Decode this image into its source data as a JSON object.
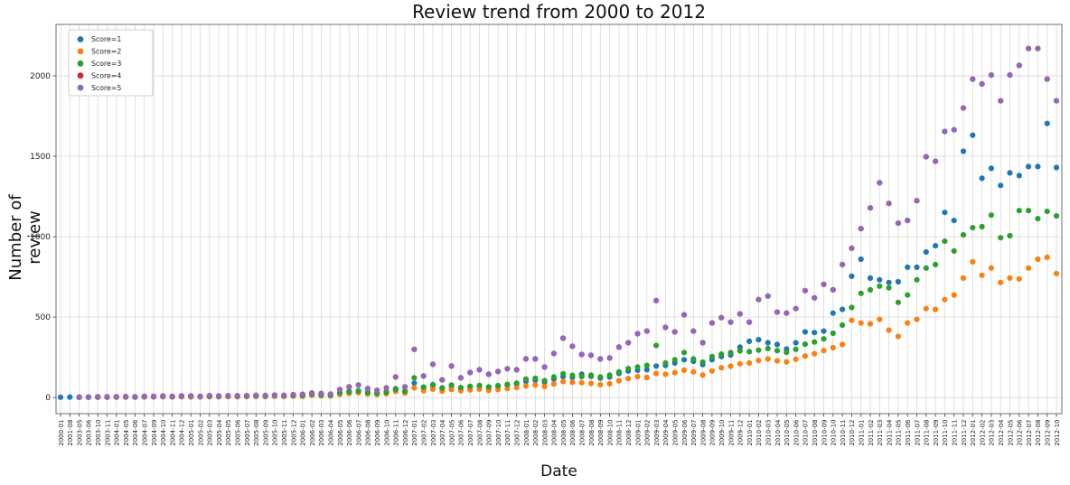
{
  "chart_data": {
    "type": "scatter",
    "title": "Review trend from 2000 to 2012",
    "xlabel": "Date",
    "ylabel": "Number of review",
    "yticks": [
      0,
      500,
      1000,
      1500,
      2000
    ],
    "ylim": [
      -100,
      2320
    ],
    "grid": true,
    "legend_position": "upper-left",
    "marker": "circle",
    "categories": [
      "2000-01",
      "2001-08",
      "2003-05",
      "2003-06",
      "2003-10",
      "2003-11",
      "2004-01",
      "2004-05",
      "2004-06",
      "2004-07",
      "2004-09",
      "2004-10",
      "2004-11",
      "2004-12",
      "2005-01",
      "2005-02",
      "2005-03",
      "2005-04",
      "2005-05",
      "2005-06",
      "2005-07",
      "2005-08",
      "2005-09",
      "2005-10",
      "2005-11",
      "2005-12",
      "2006-01",
      "2006-02",
      "2006-03",
      "2006-04",
      "2006-05",
      "2006-06",
      "2006-07",
      "2006-08",
      "2006-09",
      "2006-10",
      "2006-11",
      "2006-12",
      "2007-01",
      "2007-02",
      "2007-03",
      "2007-04",
      "2007-05",
      "2007-06",
      "2007-07",
      "2007-08",
      "2007-09",
      "2007-10",
      "2007-11",
      "2007-12",
      "2008-01",
      "2008-02",
      "2008-03",
      "2008-04",
      "2008-05",
      "2008-06",
      "2008-07",
      "2008-08",
      "2008-09",
      "2008-10",
      "2008-11",
      "2008-12",
      "2009-01",
      "2009-02",
      "2009-03",
      "2009-04",
      "2009-05",
      "2009-06",
      "2009-07",
      "2009-08",
      "2009-09",
      "2009-10",
      "2009-11",
      "2009-12",
      "2010-01",
      "2010-02",
      "2010-03",
      "2010-04",
      "2010-05",
      "2010-06",
      "2010-07",
      "2010-08",
      "2010-09",
      "2010-10",
      "2010-11",
      "2010-12",
      "2011-01",
      "2011-02",
      "2011-03",
      "2011-04",
      "2011-05",
      "2011-06",
      "2011-07",
      "2011-08",
      "2011-09",
      "2011-10",
      "2011-11",
      "2011-12",
      "2012-01",
      "2012-02",
      "2012-03",
      "2012-04",
      "2012-05",
      "2012-06",
      "2012-07",
      "2012-08",
      "2012-09",
      "2012-10"
    ],
    "series": [
      {
        "name": "Score=1",
        "color": "#1f77b4",
        "values": [
          2,
          3,
          2,
          2,
          3,
          3,
          4,
          4,
          3,
          5,
          5,
          6,
          5,
          6,
          6,
          5,
          7,
          6,
          8,
          7,
          8,
          9,
          8,
          10,
          9,
          12,
          14,
          28,
          18,
          16,
          30,
          38,
          42,
          32,
          28,
          35,
          55,
          40,
          90,
          60,
          75,
          55,
          70,
          58,
          65,
          72,
          62,
          70,
          78,
          85,
          100,
          108,
          95,
          115,
          130,
          125,
          145,
          132,
          120,
          128,
          150,
          165,
          170,
          173,
          196,
          200,
          215,
          235,
          225,
          205,
          235,
          255,
          265,
          313,
          350,
          360,
          341,
          330,
          302,
          341,
          408,
          404,
          413,
          525,
          548,
          754,
          860,
          743,
          732,
          715,
          720,
          810,
          810,
          905,
          944,
          1151,
          1101,
          1531,
          1631,
          1363,
          1425,
          1319,
          1397,
          1380,
          1436,
          1436,
          1704,
          1430
        ]
      },
      {
        "name": "Score=2",
        "color": "#ff7f0e",
        "values": [
          null,
          null,
          1,
          2,
          2,
          2,
          3,
          3,
          2,
          4,
          4,
          5,
          4,
          5,
          4,
          4,
          5,
          5,
          6,
          5,
          6,
          7,
          6,
          8,
          7,
          9,
          8,
          14,
          11,
          10,
          20,
          26,
          30,
          22,
          19,
          24,
          38,
          28,
          60,
          42,
          52,
          40,
          50,
          42,
          47,
          52,
          45,
          50,
          56,
          62,
          72,
          78,
          68,
          85,
          100,
          95,
          92,
          88,
          80,
          86,
          105,
          118,
          130,
          125,
          150,
          145,
          155,
          170,
          160,
          140,
          165,
          185,
          195,
          210,
          215,
          230,
          240,
          228,
          222,
          238,
          258,
          272,
          292,
          310,
          330,
          480,
          464,
          458,
          486,
          419,
          380,
          464,
          486,
          553,
          548,
          609,
          637,
          743,
          844,
          760,
          805,
          715,
          743,
          738,
          805,
          860,
          872,
          771
        ]
      },
      {
        "name": "Score=3",
        "color": "#2ca02c",
        "values": [
          null,
          null,
          2,
          2,
          3,
          3,
          3,
          4,
          3,
          5,
          6,
          7,
          6,
          8,
          7,
          6,
          8,
          7,
          9,
          8,
          9,
          10,
          9,
          11,
          10,
          13,
          12,
          20,
          15,
          14,
          28,
          35,
          40,
          30,
          26,
          32,
          50,
          38,
          123,
          65,
          80,
          60,
          78,
          62,
          70,
          76,
          66,
          74,
          82,
          90,
          115,
          120,
          105,
          128,
          148,
          138,
          130,
          140,
          128,
          140,
          160,
          180,
          190,
          200,
          324,
          215,
          235,
          280,
          240,
          220,
          255,
          270,
          280,
          290,
          285,
          295,
          305,
          292,
          282,
          300,
          332,
          345,
          365,
          400,
          450,
          560,
          648,
          670,
          693,
          682,
          592,
          637,
          732,
          805,
          827,
          972,
          911,
          1011,
          1056,
          1062,
          1134,
          994,
          1006,
          1162,
          1162,
          1112,
          1157,
          1129
        ]
      },
      {
        "name": "Score=4",
        "color": "#d62728",
        "values": [
          null,
          null,
          3,
          3,
          5,
          5,
          5,
          6,
          5,
          7,
          8,
          10,
          8,
          10,
          10,
          8,
          12,
          10,
          12,
          11,
          12,
          14,
          13,
          15,
          14,
          18,
          20,
          28,
          25,
          22,
          50,
          67,
          78,
          56,
          45,
          60,
          128,
          67,
          300,
          134,
          207,
          110,
          196,
          123,
          156,
          173,
          145,
          162,
          179,
          173,
          240,
          240,
          190,
          274,
          369,
          319,
          268,
          263,
          240,
          246,
          313,
          341,
          397,
          413,
          603,
          436,
          408,
          514,
          413,
          341,
          464,
          497,
          469,
          520,
          469,
          609,
          631,
          531,
          525,
          553,
          665,
          620,
          704,
          670,
          827,
          928,
          1050,
          1179,
          1335,
          1207,
          1084,
          1101,
          1224,
          1497,
          1469,
          1654,
          1665,
          1800,
          1980,
          1950,
          2005,
          1845,
          2005,
          2065,
          2170,
          2170,
          1980,
          1845
        ]
      },
      {
        "name": "Score=5",
        "color": "#9467bd",
        "values": [
          null,
          null,
          3,
          3,
          5,
          5,
          5,
          6,
          5,
          7,
          8,
          10,
          8,
          10,
          10,
          8,
          12,
          10,
          12,
          11,
          12,
          14,
          13,
          15,
          14,
          18,
          20,
          28,
          25,
          22,
          50,
          67,
          78,
          56,
          45,
          60,
          128,
          67,
          300,
          134,
          207,
          110,
          196,
          123,
          156,
          173,
          145,
          162,
          179,
          173,
          240,
          240,
          190,
          274,
          369,
          319,
          268,
          263,
          240,
          246,
          313,
          341,
          397,
          413,
          603,
          436,
          408,
          514,
          413,
          341,
          464,
          497,
          469,
          520,
          469,
          609,
          631,
          531,
          525,
          553,
          665,
          620,
          704,
          670,
          827,
          928,
          1050,
          1179,
          1335,
          1207,
          1084,
          1101,
          1224,
          1497,
          1469,
          1654,
          1665,
          1800,
          1980,
          1950,
          2005,
          1845,
          2005,
          2065,
          2170,
          2170,
          1980,
          1845
        ]
      }
    ],
    "style": {
      "grid_color": "#dcdcdc",
      "spine_color": "#6f6f6f",
      "tick_color": "#333333",
      "text_color": "#222222",
      "legend_border": "#cccccc",
      "plot_bg": "#ffffff"
    }
  }
}
